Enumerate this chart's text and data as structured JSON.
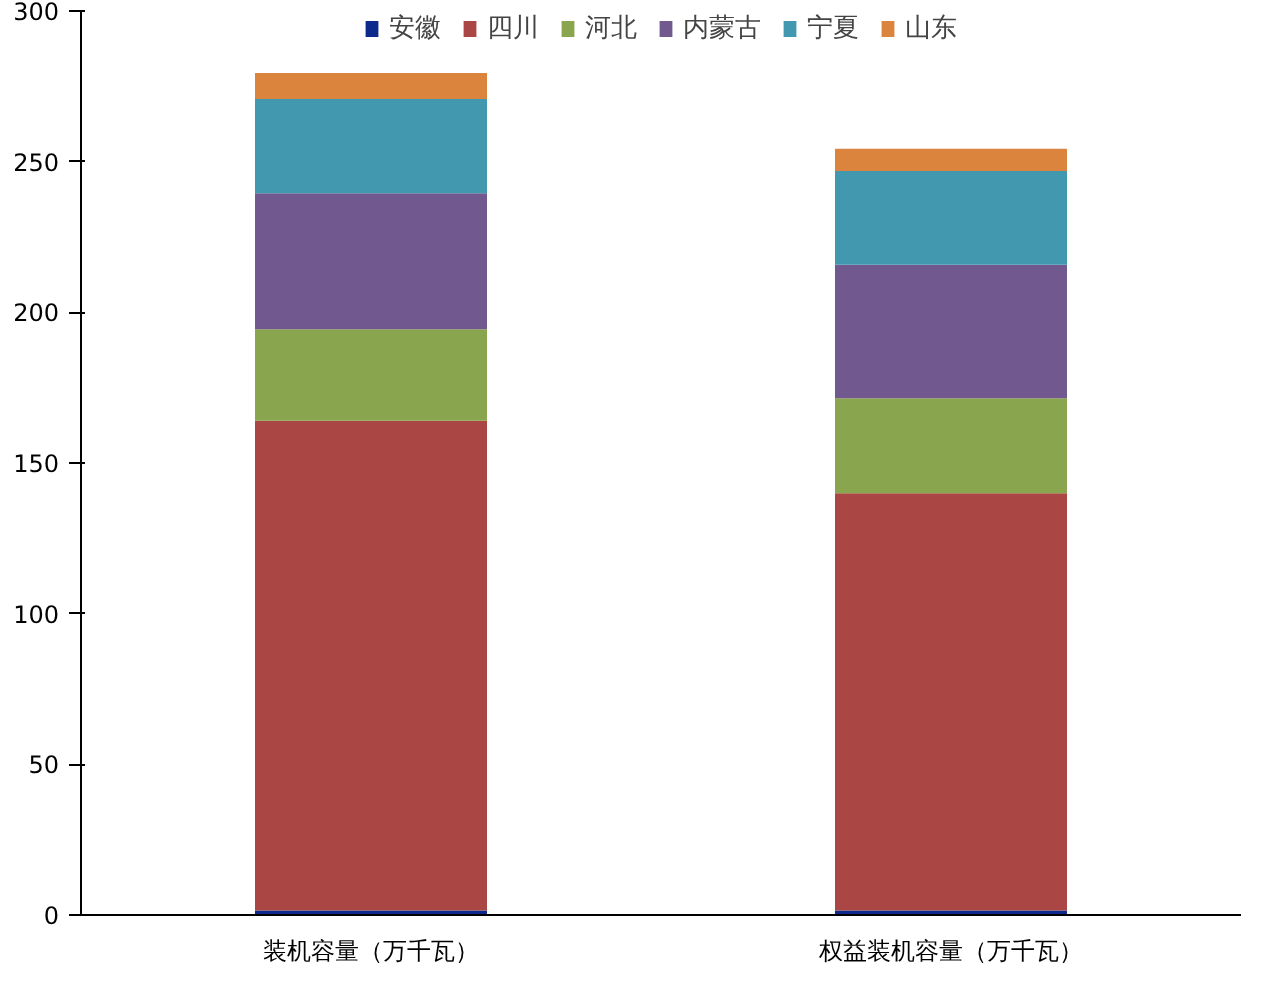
{
  "chart_data": {
    "type": "bar",
    "stacked": true,
    "categories": [
      "装机容量（万千瓦）",
      "权益装机容量（万千瓦）"
    ],
    "series": [
      {
        "name": "安徽",
        "color": "#0b2a8c",
        "values": [
          1.5,
          1.5
        ]
      },
      {
        "name": "四川",
        "color": "#aa4643",
        "values": [
          162.5,
          138.5
        ]
      },
      {
        "name": "河北",
        "color": "#89a54e",
        "values": [
          30.4,
          31.5
        ]
      },
      {
        "name": "内蒙古",
        "color": "#71588f",
        "values": [
          45.1,
          44.3
        ]
      },
      {
        "name": "宁夏",
        "color": "#4198af",
        "values": [
          31.3,
          31.1
        ]
      },
      {
        "name": "山东",
        "color": "#db843d",
        "values": [
          8.6,
          7.4
        ]
      }
    ],
    "ylim": [
      0,
      300
    ],
    "yticks": [
      0,
      50,
      100,
      150,
      200,
      250,
      300
    ],
    "grid": false,
    "legend": "top"
  }
}
